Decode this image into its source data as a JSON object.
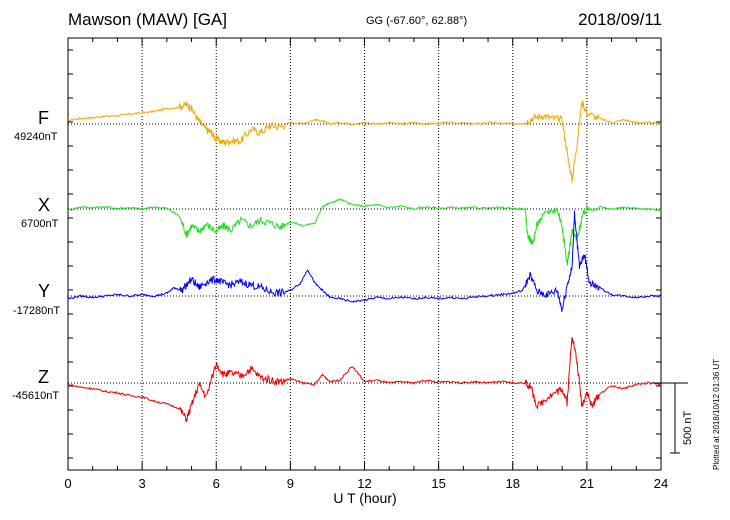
{
  "header": {
    "station": "Mawson (MAW)  [GA]",
    "coords": "GG (-67.60°,  62.88°)",
    "date": "2018/09/11"
  },
  "footer": {
    "plotted": "Plotted at 2018/10/12 01:36 UT",
    "scale": "500 nT"
  },
  "chart_data": {
    "type": "line",
    "xlabel": "U T (hour)",
    "xlim": [
      0,
      24
    ],
    "xticks": [
      "0",
      "3",
      "6",
      "9",
      "12",
      "15",
      "18",
      "21",
      "24"
    ],
    "scale_bar_nT": 500,
    "series": [
      {
        "name": "F",
        "baseline_label": "49240nT",
        "baseline_nT": 49240,
        "color": "#f0a800",
        "x": [
          0,
          0.5,
          1,
          1.5,
          2,
          2.5,
          3,
          3.5,
          4,
          4.5,
          4.8,
          5,
          5.3,
          5.6,
          5.8,
          6,
          6.3,
          6.6,
          7,
          7.4,
          7.8,
          8.2,
          8.6,
          9,
          9.5,
          10,
          10.3,
          10.6,
          11,
          11.5,
          12,
          12.5,
          13,
          13.5,
          14,
          14.5,
          15,
          15.5,
          16,
          16.5,
          17,
          17.5,
          18,
          18.5,
          18.8,
          19.2,
          19.6,
          20,
          20.2,
          20.4,
          20.6,
          20.8,
          21,
          21.5,
          22,
          22.5,
          23,
          23.5,
          24
        ],
        "y": [
          25,
          40,
          45,
          55,
          60,
          70,
          80,
          90,
          110,
          120,
          140,
          110,
          20,
          -40,
          -60,
          -110,
          -130,
          -120,
          -120,
          -40,
          -60,
          -10,
          -20,
          10,
          5,
          30,
          20,
          0,
          10,
          0,
          10,
          0,
          10,
          0,
          10,
          0,
          5,
          10,
          5,
          0,
          10,
          5,
          0,
          10,
          40,
          60,
          40,
          30,
          -200,
          -400,
          -140,
          160,
          80,
          40,
          10,
          30,
          10,
          10,
          0
        ]
      },
      {
        "name": "X",
        "baseline_label": "6700nT",
        "baseline_nT": 6700,
        "color": "#22dd22",
        "x": [
          0,
          0.5,
          1,
          1.5,
          2,
          2.5,
          3,
          3.5,
          4,
          4.5,
          4.8,
          5,
          5.3,
          5.6,
          6,
          6.3,
          6.6,
          7,
          7.4,
          7.8,
          8.2,
          8.6,
          9,
          9.5,
          10,
          10.3,
          10.6,
          11,
          11.5,
          12,
          12.5,
          13,
          13.5,
          14,
          14.5,
          15,
          15.5,
          16,
          16.5,
          17,
          17.5,
          18,
          18.5,
          18.6,
          18.8,
          19,
          19.4,
          19.8,
          20,
          20.2,
          20.4,
          20.6,
          20.8,
          21,
          21.5,
          22,
          22.5,
          23,
          23.5,
          24
        ],
        "y": [
          -10,
          15,
          10,
          15,
          5,
          10,
          0,
          15,
          5,
          -50,
          -180,
          -120,
          -160,
          -110,
          -160,
          -120,
          -150,
          -80,
          -120,
          -80,
          -100,
          -130,
          -90,
          -120,
          -100,
          20,
          40,
          70,
          30,
          20,
          30,
          10,
          20,
          0,
          15,
          5,
          10,
          5,
          10,
          5,
          10,
          5,
          0,
          -180,
          -250,
          -100,
          -20,
          0,
          -120,
          -400,
          -160,
          -220,
          -60,
          0,
          15,
          0,
          10,
          5,
          0,
          -10
        ]
      },
      {
        "name": "Y",
        "baseline_label": "-17280nT",
        "baseline_nT": -17280,
        "color": "#0000ff",
        "x": [
          0,
          0.5,
          1,
          1.5,
          2,
          2.5,
          3,
          3.5,
          4,
          4.3,
          4.6,
          5,
          5.3,
          5.6,
          6,
          6.3,
          6.6,
          7,
          7.4,
          7.8,
          8.2,
          8.6,
          9,
          9.4,
          9.7,
          10,
          10.3,
          10.6,
          11,
          11.5,
          12,
          12.5,
          13,
          13.5,
          14,
          14.5,
          15,
          15.5,
          16,
          16.5,
          17,
          17.5,
          18,
          18.4,
          18.7,
          19,
          19.4,
          19.8,
          20,
          20.2,
          20.4,
          20.5,
          20.7,
          20.9,
          21.1,
          21.5,
          22,
          22.5,
          23,
          23.5,
          24
        ],
        "y": [
          -20,
          0,
          -10,
          0,
          10,
          0,
          10,
          0,
          20,
          60,
          40,
          120,
          60,
          100,
          120,
          90,
          80,
          100,
          80,
          60,
          30,
          20,
          40,
          90,
          190,
          90,
          40,
          -10,
          -20,
          -40,
          -30,
          -10,
          -20,
          -10,
          -20,
          -10,
          -20,
          -10,
          -20,
          -5,
          0,
          10,
          20,
          40,
          150,
          30,
          10,
          40,
          -100,
          80,
          200,
          600,
          200,
          300,
          100,
          60,
          10,
          0,
          -10,
          0,
          0
        ]
      },
      {
        "name": "Z",
        "baseline_label": "-45610nT",
        "baseline_nT": -45610,
        "color": "#ee0000",
        "x": [
          0,
          0.5,
          1,
          1.5,
          2,
          2.5,
          3,
          3.5,
          4,
          4.5,
          4.8,
          5,
          5.3,
          5.6,
          6,
          6.3,
          6.6,
          7,
          7.4,
          7.8,
          8.2,
          8.6,
          9,
          9.5,
          10,
          10.3,
          10.6,
          11,
          11.5,
          12,
          12.5,
          13,
          13.5,
          14,
          14.5,
          15,
          15.5,
          16,
          16.5,
          17,
          17.5,
          18,
          18.5,
          18.7,
          19,
          19.4,
          19.8,
          20,
          20.2,
          20.4,
          20.6,
          20.8,
          21,
          21.2,
          21.5,
          22,
          22.5,
          23,
          23.5,
          24
        ],
        "y": [
          -10,
          -30,
          -40,
          -60,
          -70,
          -90,
          -100,
          -130,
          -150,
          -180,
          -260,
          -160,
          -10,
          -100,
          140,
          60,
          70,
          50,
          100,
          40,
          20,
          10,
          30,
          0,
          -10,
          60,
          10,
          20,
          120,
          10,
          20,
          0,
          10,
          0,
          20,
          5,
          10,
          0,
          10,
          0,
          10,
          0,
          0,
          -20,
          -170,
          -100,
          -60,
          -40,
          -140,
          350,
          150,
          -160,
          -60,
          -170,
          -80,
          -20,
          -40,
          -10,
          0,
          -10
        ]
      }
    ]
  }
}
